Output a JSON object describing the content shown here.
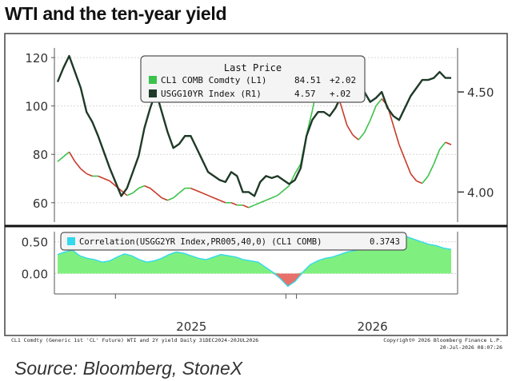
{
  "title": "WTI and the ten-year yield",
  "legend": {
    "header": "Last Price",
    "items": [
      {
        "label": "CL1 COMB Comdty (L1)",
        "value": "84.51",
        "change": "+2.02",
        "color": "#3cc24a"
      },
      {
        "label": "USGG10YR Index (R1)",
        "value": "4.57",
        "change": "+.02",
        "color": "#1f3a28"
      }
    ]
  },
  "correlation_legend": {
    "label": "Correlation(USGG2YR Index,PR005,40,0) (CL1 COMB)",
    "value": "0.3743",
    "color": "#33d9ee"
  },
  "footer_left": "CL1 Comdty (Generic 1st 'CL' Future) WTI and 2Y yield Daily 31DEC2024-20JUL2026",
  "footer_right_1": "Copyright® 2026 Bloomberg Finance L.P.",
  "footer_right_2": "20-Jul-2026 08:07:26",
  "source": "Source: Bloomberg, StoneX",
  "colors": {
    "wti_up": "#3cc24a",
    "wti_down": "#c83a2a",
    "yield": "#1f3a28",
    "corr_fill": "#7ff07f",
    "corr_neg": "#e8706a"
  },
  "chart_data": [
    {
      "type": "line",
      "x_tick_labels": [
        "2025",
        "2026"
      ],
      "left_axis": {
        "ticks": [
          "60",
          "80",
          "100",
          "120"
        ],
        "ylim": [
          52,
          124
        ]
      },
      "right_axis": {
        "ticks": [
          "4.00",
          "4.50"
        ],
        "ylim": [
          3.85,
          4.72
        ]
      },
      "series": [
        {
          "name": "CL1 COMB Comdty (L1)",
          "axis": "left",
          "values": [
            77,
            79,
            81,
            77,
            74,
            72,
            71,
            71,
            70,
            69,
            67,
            65,
            63,
            64,
            66,
            67,
            66,
            64,
            62,
            61,
            62,
            64,
            66,
            66,
            65,
            64,
            63,
            62,
            61,
            60,
            60,
            59,
            59,
            58,
            59,
            60,
            61,
            62,
            63,
            65,
            67,
            72,
            76,
            88,
            98,
            110,
            113,
            111,
            107,
            100,
            92,
            88,
            86,
            89,
            94,
            100,
            103,
            100,
            92,
            84,
            78,
            72,
            69,
            68,
            71,
            76,
            82,
            85,
            84
          ]
        },
        {
          "name": "USGG10YR Index (R1)",
          "axis": "right",
          "values": [
            4.55,
            4.62,
            4.68,
            4.6,
            4.52,
            4.4,
            4.35,
            4.28,
            4.2,
            4.12,
            4.05,
            3.98,
            4.02,
            4.1,
            4.18,
            4.32,
            4.42,
            4.5,
            4.4,
            4.3,
            4.22,
            4.24,
            4.28,
            4.28,
            4.22,
            4.16,
            4.1,
            4.08,
            4.06,
            4.05,
            4.1,
            4.08,
            4.0,
            4.0,
            3.98,
            4.05,
            4.08,
            4.07,
            4.08,
            4.06,
            4.04,
            4.06,
            4.12,
            4.28,
            4.36,
            4.4,
            4.4,
            4.38,
            4.42,
            4.48,
            4.52,
            4.49,
            4.55,
            4.5,
            4.45,
            4.47,
            4.5,
            4.42,
            4.38,
            4.36,
            4.42,
            4.48,
            4.52,
            4.56,
            4.56,
            4.57,
            4.6,
            4.57,
            4.57
          ]
        }
      ]
    },
    {
      "type": "area",
      "y_ticks": [
        "0.00",
        "0.50"
      ],
      "ylim": [
        -0.32,
        0.66
      ],
      "series": [
        {
          "name": "Correlation(USGG2YR Index,PR005,40,0) (CL1 COMB)",
          "values": [
            0.3,
            0.34,
            0.37,
            0.28,
            0.24,
            0.22,
            0.18,
            0.2,
            0.26,
            0.31,
            0.28,
            0.22,
            0.18,
            0.2,
            0.24,
            0.3,
            0.34,
            0.32,
            0.28,
            0.24,
            0.22,
            0.26,
            0.3,
            0.28,
            0.26,
            0.22,
            0.2,
            0.18,
            0.1,
            0.02,
            -0.08,
            -0.2,
            -0.12,
            0.02,
            0.14,
            0.2,
            0.24,
            0.26,
            0.3,
            0.34,
            0.36,
            0.4,
            0.43,
            0.44,
            0.48,
            0.52,
            0.56,
            0.58,
            0.54,
            0.5,
            0.46,
            0.44,
            0.4,
            0.38
          ]
        }
      ]
    }
  ]
}
